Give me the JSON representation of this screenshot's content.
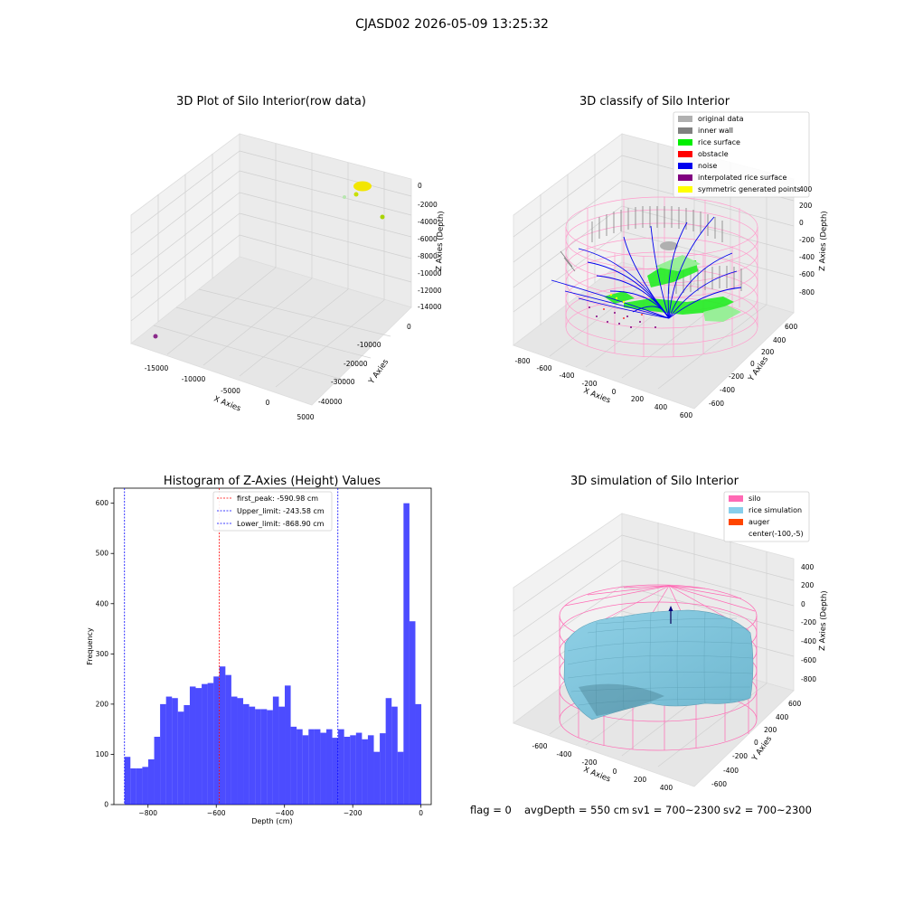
{
  "figure": {
    "suptitle": "CJASD02 2026-05-09 13:25:32",
    "footer": {
      "flag": "flag = 0",
      "avg_depth": "avgDepth = 550 cm",
      "sv1": "sv1 = 700~2300",
      "sv2": "sv2 = 700~2300"
    }
  },
  "panel_raw": {
    "title": "3D Plot of Silo Interior(row data)",
    "xlabel": "X Axies",
    "ylabel": "Y Axies",
    "zlabel": "Z Axies (Depth)",
    "xticks": [
      "-15000",
      "-10000",
      "-5000",
      "0",
      "5000"
    ],
    "yticks": [
      "0",
      "-10000",
      "-20000",
      "-30000",
      "-40000"
    ],
    "zticks": [
      "0",
      "-2000",
      "-4000",
      "-6000",
      "-8000",
      "-10000",
      "-12000",
      "-14000"
    ]
  },
  "panel_classify": {
    "title": "3D classify of Silo Interior",
    "xlabel": "X Axies",
    "ylabel": "Y Axies",
    "zlabel": "Z Axies (Depth)",
    "xticks": [
      "-800",
      "-600",
      "-400",
      "-200",
      "0",
      "200",
      "400",
      "600"
    ],
    "yticks": [
      "600",
      "400",
      "200",
      "0",
      "-200",
      "-400",
      "-600"
    ],
    "zticks": [
      "400",
      "200",
      "0",
      "-200",
      "-400",
      "-600",
      "-800"
    ],
    "legend": [
      {
        "label": "original data",
        "color": "#b0b0b0"
      },
      {
        "label": "inner wall",
        "color": "#808080"
      },
      {
        "label": "rice surface",
        "color": "#00ee00"
      },
      {
        "label": "obstacle",
        "color": "#ff0000"
      },
      {
        "label": "noise",
        "color": "#0000ee"
      },
      {
        "label": "interpolated rice surface",
        "color": "#800080"
      },
      {
        "label": "symmetric generated points",
        "color": "#ffff00"
      }
    ]
  },
  "panel_sim": {
    "title": "3D simulation of Silo Interior",
    "xlabel": "X Axies",
    "ylabel": "Y Axies",
    "zlabel": "Z Axies (Depth)",
    "xticks": [
      "-600",
      "-400",
      "-200",
      "0",
      "200",
      "400"
    ],
    "yticks": [
      "600",
      "400",
      "200",
      "0",
      "-200",
      "-400",
      "-600"
    ],
    "zticks": [
      "400",
      "200",
      "0",
      "-200",
      "-400",
      "-600",
      "-800"
    ],
    "legend": [
      {
        "label": "silo",
        "color": "#ff69b4"
      },
      {
        "label": "rice simulation",
        "color": "#87ceeb"
      },
      {
        "label": "auger",
        "color": "#ff4500"
      },
      {
        "label": "center(-100,-5)",
        "color": "none"
      }
    ]
  },
  "chart_data": {
    "type": "bar",
    "title": "Histogram of Z-Axies (Height) Values",
    "xlabel": "Depth (cm)",
    "ylabel": "Frequency",
    "xlim": [
      -900,
      30
    ],
    "ylim": [
      0,
      630
    ],
    "bar_color": "#0000ff",
    "bins_start": -869,
    "bin_width": 17.4,
    "values": [
      95,
      72,
      72,
      75,
      90,
      135,
      200,
      215,
      212,
      185,
      198,
      235,
      232,
      240,
      242,
      255,
      275,
      258,
      215,
      212,
      200,
      195,
      190,
      190,
      188,
      215,
      195,
      237,
      155,
      150,
      138,
      150,
      150,
      143,
      150,
      133,
      150,
      135,
      138,
      143,
      130,
      138,
      105,
      142,
      212,
      195,
      105,
      600,
      365,
      200
    ],
    "xticks": [
      -800,
      -600,
      -400,
      -200,
      0
    ],
    "yticks": [
      0,
      100,
      200,
      300,
      400,
      500,
      600
    ],
    "reference_lines": [
      {
        "label": "first_peak: -590.98 cm",
        "x": -590.98,
        "color": "#ff0000"
      },
      {
        "label": "Upper_limit: -243.58 cm",
        "x": -243.58,
        "color": "#0000ff"
      },
      {
        "label": "Lower_limit: -868.90 cm",
        "x": -868.9,
        "color": "#0000ff"
      }
    ],
    "legend_position": "top-center"
  }
}
